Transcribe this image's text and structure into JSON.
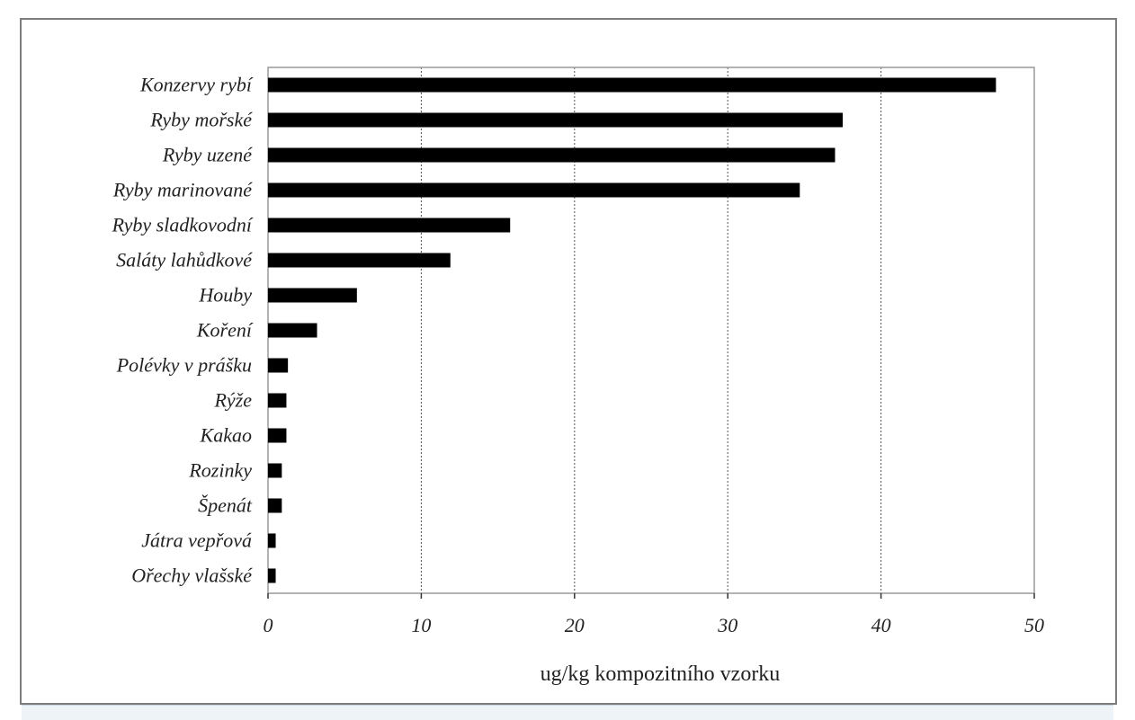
{
  "chart_data": {
    "type": "bar",
    "orientation": "horizontal",
    "categories": [
      "Konzervy rybí",
      "Ryby mořské",
      "Ryby uzené",
      "Ryby marinované",
      "Ryby sladkovodní",
      "Saláty lahůdkové",
      "Houby",
      "Koření",
      "Polévky v prášku",
      "Rýže",
      "Kakao",
      "Rozinky",
      "Špenát",
      "Játra vepřová",
      "Ořechy vlašské"
    ],
    "values": [
      47.5,
      37.5,
      37,
      34.7,
      15.8,
      11.9,
      5.8,
      3.2,
      1.3,
      1.2,
      1.2,
      0.9,
      0.9,
      0.5,
      0.5
    ],
    "xlabel": "ug/kg kompozitního vzorku",
    "xlim": [
      0,
      50
    ],
    "xticks": [
      0,
      10,
      20,
      30,
      40,
      50
    ],
    "grid": "vertical",
    "bar_color": "#000000"
  }
}
